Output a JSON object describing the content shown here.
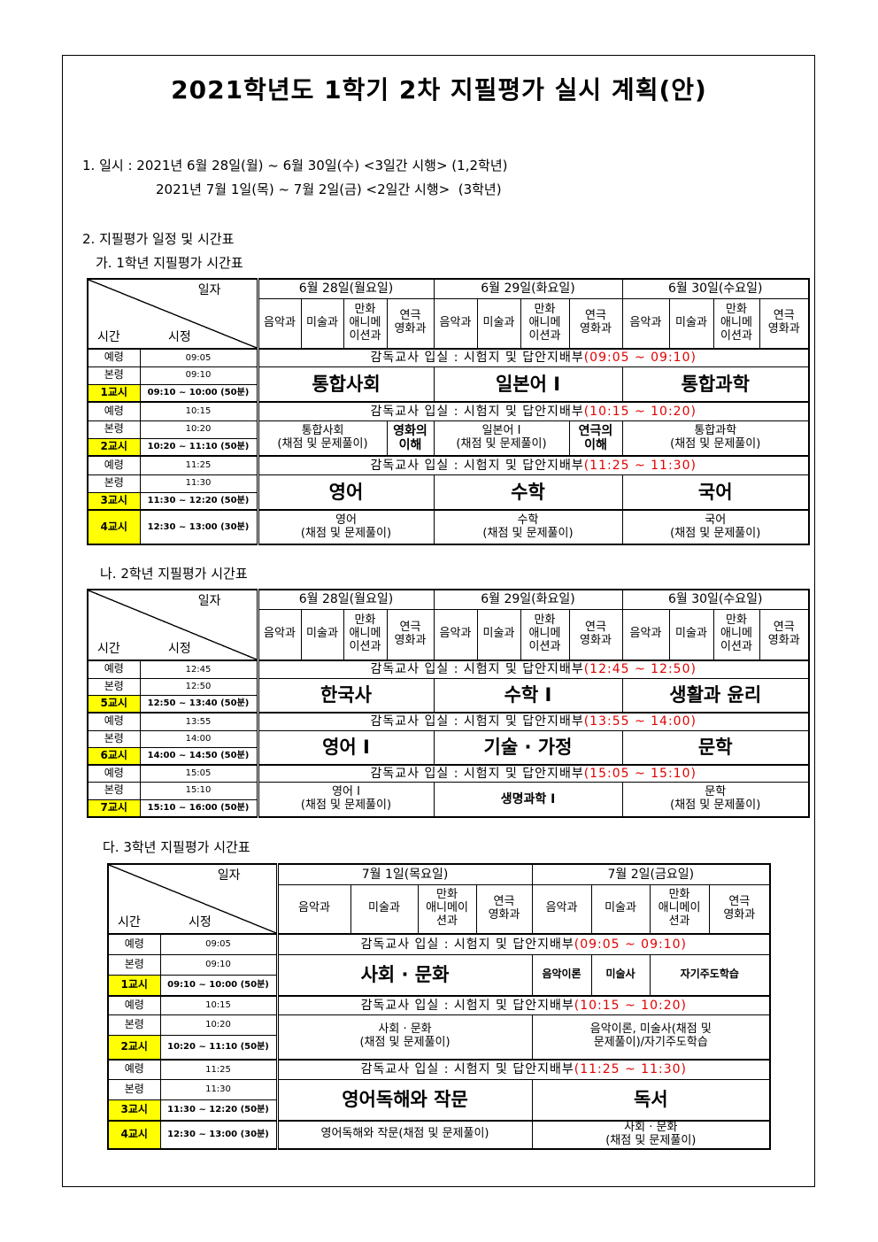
{
  "title": "2021학년도 1학기 2차 지필평가 실시 계획(안)",
  "section1": {
    "line1": "1. 일시 : 2021년 6월 28일(월) ~ 6월 30일(수) <3일간 시행> (1,2학년)",
    "line2": "2021년 7월 1일(목) ~ 7월 2일(금) <2일간 시행>  (3학년)"
  },
  "section2": {
    "heading": "2. 지필평가 일정 및 시간표"
  },
  "tables": [
    {
      "heading": "가. 1학년 지필평가 시간표",
      "corner": {
        "top": "일자",
        "left": "시간",
        "mid": "시정"
      },
      "days": [
        "6월 28일(월요일)",
        "6월 29일(화요일)",
        "6월 30일(수요일)"
      ],
      "subjects": [
        "음악과",
        "미술과",
        "만화\n애니메\n이션과",
        "연극\n영화과",
        "음악과",
        "미술과",
        "만화\n애니메\n이션과",
        "연극\n영화과",
        "음악과",
        "미술과",
        "만화\n애니메\n이션과",
        "연극\n영화과"
      ],
      "rows": [
        [
          {
            "t": "예령",
            "c": "lab"
          },
          {
            "t": "09:05",
            "c": "tm"
          },
          {
            "notice": "감독교사 입실 : 시험지 및 답안지배부",
            "range": "(09:05 ~ 09:10)",
            "cs": 12
          }
        ],
        [
          {
            "t": "본령",
            "c": "lab"
          },
          {
            "t": "09:10",
            "c": "tm"
          },
          {
            "t": "통합사회",
            "c": "big",
            "cs": 4,
            "rs": 2
          },
          {
            "t": "일본어 Ⅰ",
            "c": "big",
            "cs": 4,
            "rs": 2
          },
          {
            "t": "통합과학",
            "c": "big",
            "cs": 4,
            "rs": 2
          }
        ],
        [
          {
            "t": "1교시",
            "c": "period"
          },
          {
            "t": "09:10 ~ 10:00 (50분)",
            "c": "tmb"
          }
        ],
        [
          {
            "t": "예령",
            "c": "lab"
          },
          {
            "t": "10:15",
            "c": "tm"
          },
          {
            "notice": "감독교사 입실 : 시험지 및 답안지배부",
            "range": "(10:15 ~ 10:20)",
            "cs": 12
          }
        ],
        [
          {
            "t": "본령",
            "c": "lab"
          },
          {
            "t": "10:20",
            "c": "tm"
          },
          {
            "t": "통합사회\n(채점 및 문제풀이)",
            "c": "txt",
            "cs": 3,
            "rs": 2
          },
          {
            "t": "영화의\n이해",
            "c": "bold",
            "rs": 2
          },
          {
            "t": "일본어 Ⅰ\n(채점 및 문제풀이)",
            "c": "txt",
            "cs": 3,
            "rs": 2
          },
          {
            "t": "연극의\n이해",
            "c": "bold",
            "rs": 2
          },
          {
            "t": "통합과학\n(채점 및 문제풀이)",
            "c": "txt",
            "cs": 4,
            "rs": 2
          }
        ],
        [
          {
            "t": "2교시",
            "c": "period"
          },
          {
            "t": "10:20 ~ 11:10 (50분)",
            "c": "tmb"
          }
        ],
        [
          {
            "t": "예령",
            "c": "lab"
          },
          {
            "t": "11:25",
            "c": "tm"
          },
          {
            "notice": "감독교사 입실 : 시험지 및 답안지배부",
            "range": "(11:25 ~ 11:30)",
            "cs": 12
          }
        ],
        [
          {
            "t": "본령",
            "c": "lab"
          },
          {
            "t": "11:30",
            "c": "tm"
          },
          {
            "t": "영어",
            "c": "big",
            "cs": 4,
            "rs": 2
          },
          {
            "t": "수학",
            "c": "big",
            "cs": 4,
            "rs": 2
          },
          {
            "t": "국어",
            "c": "big",
            "cs": 4,
            "rs": 2
          }
        ],
        [
          {
            "t": "3교시",
            "c": "period"
          },
          {
            "t": "11:30 ~ 12:20 (50분)",
            "c": "tmb"
          }
        ],
        [
          {
            "t": "4교시",
            "c": "period"
          },
          {
            "t": "12:30 ~ 13:00 (30분)",
            "c": "tmb"
          },
          {
            "t": "영어\n(채점 및 문제풀이)",
            "c": "txt",
            "cs": 4
          },
          {
            "t": "수학\n(채점 및 문제풀이)",
            "c": "txt",
            "cs": 4
          },
          {
            "t": "국어\n(채점 및 문제풀이)",
            "c": "txt",
            "cs": 4
          }
        ]
      ]
    },
    {
      "heading": "나. 2학년 지필평가 시간표",
      "corner": {
        "top": "일자",
        "left": "시간",
        "mid": "시정"
      },
      "days": [
        "6월 28일(월요일)",
        "6월 29일(화요일)",
        "6월 30일(수요일)"
      ],
      "subjects": [
        "음악과",
        "미술과",
        "만화\n애니메\n이션과",
        "연극\n영화과",
        "음악과",
        "미술과",
        "만화\n애니메\n이션과",
        "연극\n영화과",
        "음악과",
        "미술과",
        "만화\n애니메\n이션과",
        "연극\n영화과"
      ],
      "rows": [
        [
          {
            "t": "예령",
            "c": "lab"
          },
          {
            "t": "12:45",
            "c": "tm"
          },
          {
            "notice": "감독교사 입실 : 시험지 및 답안지배부",
            "range": "(12:45 ~ 12:50)",
            "cs": 12
          }
        ],
        [
          {
            "t": "본령",
            "c": "lab"
          },
          {
            "t": "12:50",
            "c": "tm"
          },
          {
            "t": "한국사",
            "c": "big",
            "cs": 4,
            "rs": 2
          },
          {
            "t": "수학 Ⅰ",
            "c": "big",
            "cs": 4,
            "rs": 2
          },
          {
            "t": "생활과 윤리",
            "c": "big",
            "cs": 4,
            "rs": 2
          }
        ],
        [
          {
            "t": "5교시",
            "c": "period"
          },
          {
            "t": "12:50 ~ 13:40 (50분)",
            "c": "tmb"
          }
        ],
        [
          {
            "t": "예령",
            "c": "lab"
          },
          {
            "t": "13:55",
            "c": "tm"
          },
          {
            "notice": "감독교사 입실 : 시험지 및 답안지배부",
            "range": "(13:55 ~ 14:00)",
            "cs": 12
          }
        ],
        [
          {
            "t": "본령",
            "c": "lab"
          },
          {
            "t": "14:00",
            "c": "tm"
          },
          {
            "t": "영어 Ⅰ",
            "c": "big",
            "cs": 4,
            "rs": 2
          },
          {
            "t": "기술 · 가정",
            "c": "big",
            "cs": 4,
            "rs": 2
          },
          {
            "t": "문학",
            "c": "big",
            "cs": 4,
            "rs": 2
          }
        ],
        [
          {
            "t": "6교시",
            "c": "period"
          },
          {
            "t": "14:00 ~ 14:50 (50분)",
            "c": "tmb"
          }
        ],
        [
          {
            "t": "예령",
            "c": "lab"
          },
          {
            "t": "15:05",
            "c": "tm"
          },
          {
            "notice": "감독교사 입실 : 시험지 및 답안지배부",
            "range": "(15:05 ~ 15:10)",
            "cs": 12
          }
        ],
        [
          {
            "t": "본령",
            "c": "lab"
          },
          {
            "t": "15:10",
            "c": "tm"
          },
          {
            "t": "영어 Ⅰ\n(채점 및 문제풀이)",
            "c": "txt",
            "cs": 4,
            "rs": 2
          },
          {
            "t": "생명과학 Ⅰ",
            "c": "bold",
            "cs": 4,
            "rs": 2
          },
          {
            "t": "문학\n(채점 및 문제풀이)",
            "c": "txt",
            "cs": 4,
            "rs": 2
          }
        ],
        [
          {
            "t": "7교시",
            "c": "period"
          },
          {
            "t": "15:10 ~ 16:00 (50분)",
            "c": "tmb"
          }
        ]
      ]
    },
    {
      "heading": "다. 3학년 지필평가 시간표",
      "corner": {
        "top": "일자",
        "left": "시간",
        "mid": "시정"
      },
      "days": [
        "7월 1일(목요일)",
        "7월 2일(금요일)"
      ],
      "subjects": [
        "음악과",
        "미술과",
        "만화\n애니메이\n션과",
        "연극\n영화과",
        "음악과",
        "미술과",
        "만화\n애니메이\n션과",
        "연극\n영화과"
      ],
      "rows": [
        [
          {
            "t": "예령",
            "c": "lab"
          },
          {
            "t": "09:05",
            "c": "tm"
          },
          {
            "notice": "감독교사 입실 : 시험지 및 답안지배부",
            "range": "(09:05 ~ 09:10)",
            "cs": 8
          }
        ],
        [
          {
            "t": "본령",
            "c": "lab"
          },
          {
            "t": "09:10",
            "c": "tm"
          },
          {
            "t": "사회 · 문화",
            "c": "big",
            "cs": 4,
            "rs": 2
          },
          {
            "t": "음악이론",
            "c": "boldsm",
            "rs": 2
          },
          {
            "t": "미술사",
            "c": "boldsm",
            "rs": 2
          },
          {
            "t": "자기주도학습",
            "c": "boldsm",
            "cs": 2,
            "rs": 2
          }
        ],
        [
          {
            "t": "1교시",
            "c": "period"
          },
          {
            "t": "09:10 ~ 10:00 (50분)",
            "c": "tmb"
          }
        ],
        [
          {
            "t": "예령",
            "c": "lab"
          },
          {
            "t": "10:15",
            "c": "tm"
          },
          {
            "notice": "감독교사 입실 : 시험지 및 답안지배부",
            "range": "(10:15 ~ 10:20)",
            "cs": 8
          }
        ],
        [
          {
            "t": "본령",
            "c": "lab"
          },
          {
            "t": "10:20",
            "c": "tm"
          },
          {
            "t": "사회 · 문화\n(채점 및 문제풀이)",
            "c": "txt",
            "cs": 4,
            "rs": 2
          },
          {
            "t": "음악이론, 미술사(채점 및\n문제풀이)/자기주도학습",
            "c": "txt",
            "cs": 4,
            "rs": 2
          }
        ],
        [
          {
            "t": "2교시",
            "c": "period"
          },
          {
            "t": "10:20 ~ 11:10 (50분)",
            "c": "tmb"
          }
        ],
        [
          {
            "t": "예령",
            "c": "lab"
          },
          {
            "t": "11:25",
            "c": "tm"
          },
          {
            "notice": "감독교사 입실 : 시험지 및 답안지배부",
            "range": "(11:25 ~ 11:30)",
            "cs": 8
          }
        ],
        [
          {
            "t": "본령",
            "c": "lab"
          },
          {
            "t": "11:30",
            "c": "tm"
          },
          {
            "t": "영어독해와 작문",
            "c": "big",
            "cs": 4,
            "rs": 2
          },
          {
            "t": "독서",
            "c": "big",
            "cs": 4,
            "rs": 2
          }
        ],
        [
          {
            "t": "3교시",
            "c": "period"
          },
          {
            "t": "11:30 ~ 12:20 (50분)",
            "c": "tmb"
          }
        ],
        [
          {
            "t": "4교시",
            "c": "period"
          },
          {
            "t": "12:30 ~ 13:00 (30분)",
            "c": "tmb"
          },
          {
            "t": "영어독해와 작문(채점 및 문제풀이)",
            "c": "txt",
            "cs": 4
          },
          {
            "t": "사회 · 문화\n(채점 및 문제풀이)",
            "c": "txt",
            "cs": 4
          }
        ]
      ]
    }
  ],
  "colors": {
    "notice_range": "#e00000",
    "period_highlight": "#ffff00"
  }
}
